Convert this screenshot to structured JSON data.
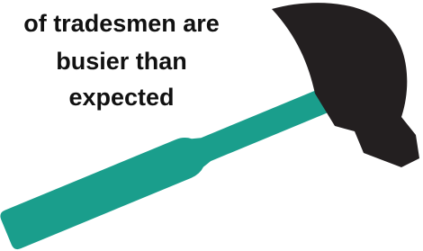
{
  "text": {
    "lines": [
      "of tradesmen are",
      "busier than",
      "expected"
    ]
  }
}
